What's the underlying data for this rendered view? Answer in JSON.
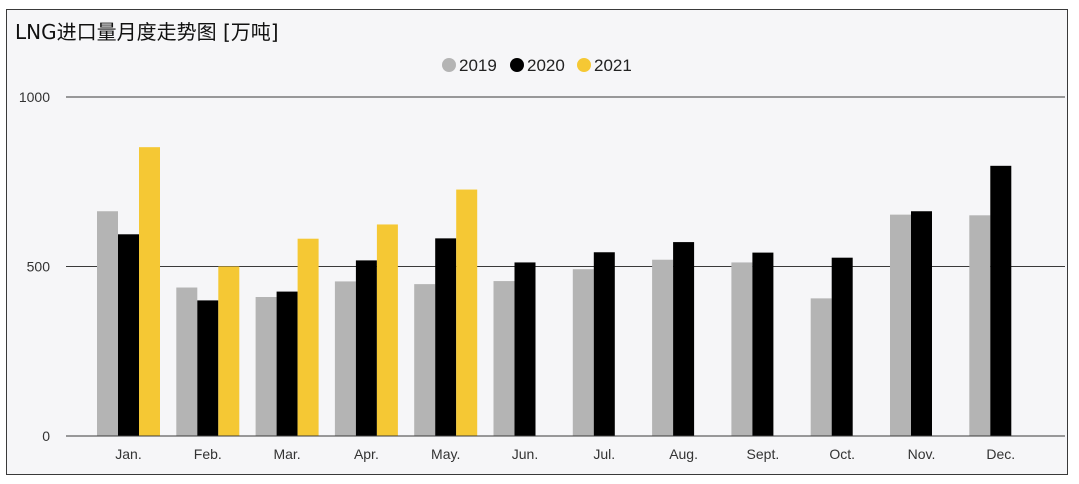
{
  "chart_data": {
    "type": "bar",
    "title": "LNG进口量月度走势图 [万吨]",
    "xlabel": "",
    "ylabel": "",
    "ylim": [
      0,
      1000
    ],
    "yticks": [
      0,
      500,
      1000
    ],
    "grid": true,
    "legend_position": "top-center",
    "categories": [
      "Jan.",
      "Feb.",
      "Mar.",
      "Apr.",
      "May.",
      "Jun.",
      "Jul.",
      "Aug.",
      "Sept.",
      "Oct.",
      "Nov.",
      "Dec."
    ],
    "series": [
      {
        "name": "2019",
        "color": "#b4b4b4",
        "values": [
          663,
          438,
          410,
          456,
          448,
          457,
          492,
          520,
          512,
          406,
          653,
          651
        ]
      },
      {
        "name": "2020",
        "color": "#000000",
        "values": [
          595,
          400,
          426,
          518,
          583,
          512,
          542,
          572,
          541,
          526,
          663,
          797
        ]
      },
      {
        "name": "2021",
        "color": "#f5c834",
        "values": [
          852,
          500,
          582,
          624,
          727,
          null,
          null,
          null,
          null,
          null,
          null,
          null
        ]
      }
    ]
  }
}
